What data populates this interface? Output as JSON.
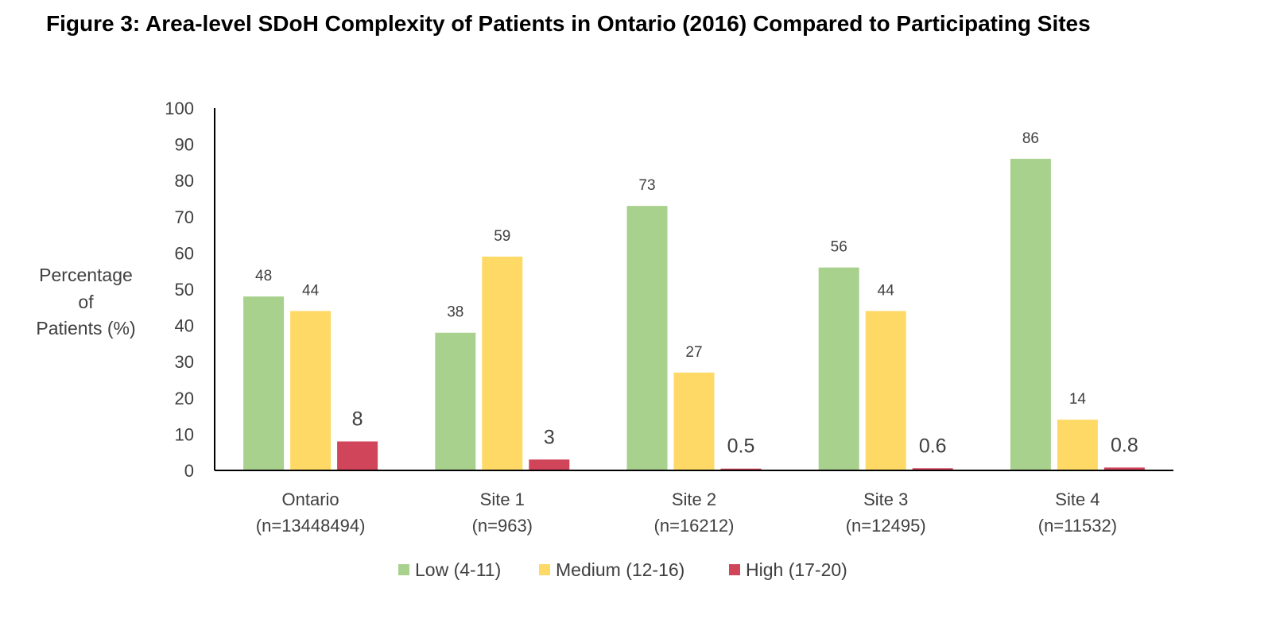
{
  "figure_title": "Figure 3: Area-level SDoH Complexity of Patients in Ontario (2016) Compared to Participating Sites",
  "chart_data": {
    "type": "bar",
    "title": "Figure 3: Area-level SDoH Complexity of Patients in Ontario (2016) Compared to Participating Sites",
    "ylabel_lines": [
      "Percentage",
      "of",
      "Patients (%)"
    ],
    "xlabel": "",
    "categories": [
      {
        "name": "Ontario",
        "n": "(n=13448494)"
      },
      {
        "name": "Site 1",
        "n": "(n=963)"
      },
      {
        "name": "Site 2",
        "n": "(n=16212)"
      },
      {
        "name": "Site 3",
        "n": "(n=12495)"
      },
      {
        "name": "Site 4",
        "n": "(n=11532)"
      }
    ],
    "series": [
      {
        "name": "Low (4-11)",
        "color": "#a9d18e",
        "values": [
          48,
          38,
          73,
          56,
          86
        ],
        "labels": [
          "48",
          "38",
          "73",
          "56",
          "86"
        ]
      },
      {
        "name": "Medium (12-16)",
        "color": "#ffd966",
        "values": [
          44,
          59,
          27,
          44,
          14
        ],
        "labels": [
          "44",
          "59",
          "27",
          "44",
          "14"
        ]
      },
      {
        "name": "High (17-20)",
        "color": "#d0455a",
        "values": [
          8,
          3,
          0.5,
          0.6,
          0.8
        ],
        "labels": [
          "8",
          "3",
          "0.5",
          "0.6",
          "0.8"
        ]
      }
    ],
    "ylim": [
      0,
      100
    ],
    "yticks": [
      0,
      10,
      20,
      30,
      40,
      50,
      60,
      70,
      80,
      90,
      100
    ],
    "grid": false,
    "legend_position": "bottom"
  }
}
